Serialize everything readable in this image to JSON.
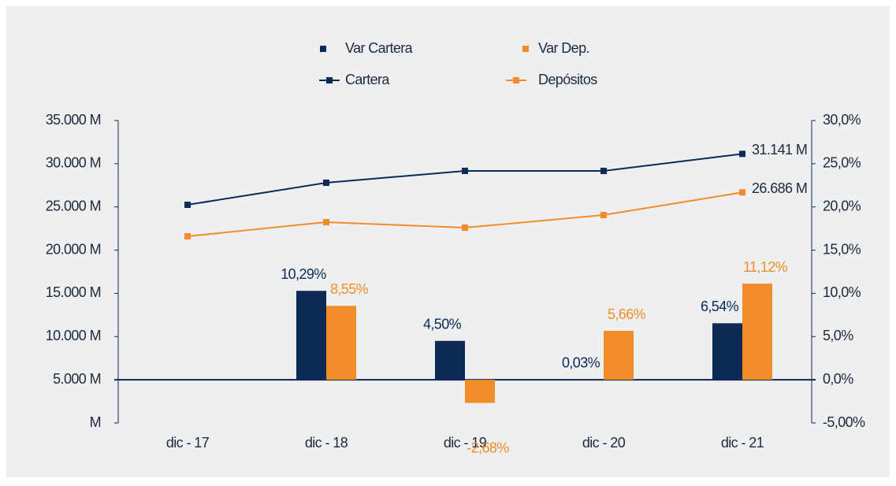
{
  "chart_data": {
    "type": "combo",
    "categories": [
      "dic - 17",
      "dic - 18",
      "dic - 19",
      "dic - 20",
      "dic - 21"
    ],
    "series": [
      {
        "name": "Var Cartera",
        "type": "bar",
        "axis": "y2",
        "color": "#0c2a55",
        "values": [
          null,
          10.29,
          4.5,
          0.03,
          6.54
        ],
        "value_labels": [
          null,
          "10,29%",
          "4,50%",
          "0,03%",
          "6,54%"
        ]
      },
      {
        "name": "Var Dep.",
        "type": "bar",
        "axis": "y2",
        "color": "#f28c28",
        "values": [
          null,
          8.55,
          -2.68,
          5.66,
          11.12
        ],
        "value_labels": [
          null,
          "8,55%",
          "-2,68%",
          "5,66%",
          "11,12%"
        ]
      },
      {
        "name": "Cartera",
        "type": "line",
        "color": "#0c2a55",
        "values": [
          25250,
          27800,
          29170,
          29170,
          31141
        ],
        "value_labels": [
          null,
          null,
          null,
          null,
          "31.141 M"
        ]
      },
      {
        "name": "Depósitos",
        "type": "line",
        "color": "#f28c28",
        "values": [
          21600,
          23240,
          22600,
          24060,
          26686
        ],
        "value_labels": [
          null,
          null,
          null,
          null,
          "26.686 M"
        ]
      }
    ],
    "ylim": [
      0,
      35000
    ],
    "yticks": [
      {
        "value": 0,
        "label": "M"
      },
      {
        "value": 5000,
        "label": "5.000 M"
      },
      {
        "value": 10000,
        "label": "10.000 M"
      },
      {
        "value": 15000,
        "label": "15.000 M"
      },
      {
        "value": 20000,
        "label": "20.000 M"
      },
      {
        "value": 25000,
        "label": "25.000 M"
      },
      {
        "value": 30000,
        "label": "30.000 M"
      },
      {
        "value": 35000,
        "label": "35.000 M"
      }
    ],
    "y2lim": [
      -5,
      30
    ],
    "y2ticks": [
      {
        "value": -5,
        "label": "-5,00%"
      },
      {
        "value": 0,
        "label": "0,0%"
      },
      {
        "value": 5,
        "label": "5,0%"
      },
      {
        "value": 10,
        "label": "10,0%"
      },
      {
        "value": 15,
        "label": "15,0%"
      },
      {
        "value": 20,
        "label": "20,0%"
      },
      {
        "value": 25,
        "label": "25,0%"
      },
      {
        "value": 30,
        "label": "30,0%"
      }
    ],
    "grid": false,
    "legend": "top"
  }
}
